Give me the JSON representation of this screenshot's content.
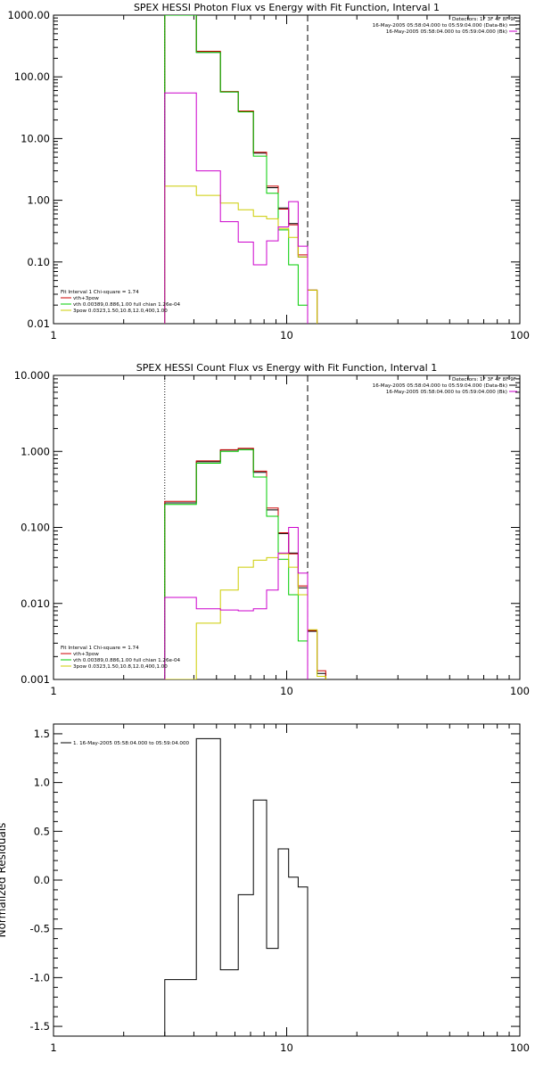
{
  "chart_data": [
    {
      "type": "line",
      "title": "SPEX HESSI Photon Flux vs Energy with Fit Function, Interval 1",
      "xscale": "log",
      "yscale": "log",
      "xlim": [
        1,
        100
      ],
      "ylim": [
        0.01,
        1000
      ],
      "x_ticks": [
        "1",
        "10",
        "100"
      ],
      "y_ticks": [
        "0.01",
        "0.10",
        "1.00",
        "10.00",
        "100.00",
        "1000.00"
      ],
      "info_lines": [
        {
          "text": "Detectors: 1F 3F 4F 8F 9F",
          "color": ""
        },
        {
          "text": "16-May-2005 05:58:04.000 to 05:59:04.000 (Data-Bk)",
          "color": "#000000"
        },
        {
          "text": "16-May-2005 05:58:04.000 to 05:59:04.000 (Bk)",
          "color": "#cc00cc"
        }
      ],
      "legend": [
        {
          "text": "Fit Interval 1    Chi-square = 1.74",
          "color": ""
        },
        {
          "text": "vth+3pow",
          "color": "#cc0000"
        },
        {
          "text": "vth 0.00389,0.886,1.00   full chian 1.26e-04",
          "color": "#00cc00"
        },
        {
          "text": "3pow 0.0323,1.50,10.8,12.0,400,1.00",
          "color": "#cccc00"
        }
      ],
      "vlines": [
        {
          "x": 3.0,
          "style": "dotted"
        },
        {
          "x": 12.3,
          "style": "dashed"
        }
      ],
      "edges": [
        3,
        4.1,
        5.2,
        6.2,
        7.2,
        8.2,
        9.2,
        10.2,
        11.2,
        12.3,
        13.5
      ],
      "series": [
        {
          "name": "Data-Bk",
          "color": "#000000",
          "values": [
            1000,
            250,
            57,
            28,
            5.8,
            1.6,
            0.75,
            0.42,
            0.12,
            0.035
          ]
        },
        {
          "name": "vth+3pow",
          "color": "#cc0000",
          "values": [
            1000,
            260,
            58,
            28,
            6.0,
            1.7,
            0.72,
            0.4,
            0.13,
            0.035
          ]
        },
        {
          "name": "vth",
          "color": "#00cc00",
          "values": [
            1000,
            250,
            57,
            27,
            5.2,
            1.3,
            0.33,
            0.09,
            0.02,
            0.0
          ]
        },
        {
          "name": "3pow",
          "color": "#cccc00",
          "values": [
            1.7,
            1.2,
            0.9,
            0.7,
            0.55,
            0.5,
            0.35,
            0.25,
            0.12,
            0.035
          ]
        },
        {
          "name": "Bk",
          "color": "#cc00cc",
          "values": [
            55,
            3.0,
            0.45,
            0.21,
            0.09,
            0.22,
            0.37,
            0.95,
            0.18,
            0.0
          ]
        }
      ]
    },
    {
      "type": "line",
      "title": "SPEX HESSI Count Flux vs Energy with Fit Function, Interval 1",
      "xscale": "log",
      "yscale": "log",
      "xlim": [
        1,
        100
      ],
      "ylim": [
        0.001,
        10
      ],
      "x_ticks": [
        "1",
        "10",
        "100"
      ],
      "y_ticks": [
        "0.001",
        "0.010",
        "0.100",
        "1.000",
        "10.000"
      ],
      "info_lines": [
        {
          "text": "Detectors: 1F 3F 4F 8F 9F",
          "color": ""
        },
        {
          "text": "16-May-2005 05:58:04.000 to 05:59:04.000 (Data-Bk)",
          "color": "#000000"
        },
        {
          "text": "16-May-2005 05:58:04.000 to 05:59:04.000 (Bk)",
          "color": "#cc00cc"
        }
      ],
      "legend": [
        {
          "text": "Fit Interval 1    Chi-square = 1.74",
          "color": ""
        },
        {
          "text": "vth+3pow",
          "color": "#cc0000"
        },
        {
          "text": "vth 0.00389,0.886,1.00   full chian 1.26e-04",
          "color": "#00cc00"
        },
        {
          "text": "3pow 0.0323,1.50,10.8,12.0,400,1.00",
          "color": "#cccc00"
        }
      ],
      "vlines": [
        {
          "x": 3.0,
          "style": "dotted"
        },
        {
          "x": 12.3,
          "style": "dashed"
        }
      ],
      "edges": [
        3,
        4.1,
        5.2,
        6.2,
        7.2,
        8.2,
        9.2,
        10.2,
        11.2,
        12.3,
        13.5,
        14.7
      ],
      "series": [
        {
          "name": "Data-Bk",
          "color": "#000000",
          "values": [
            0.21,
            0.73,
            1.04,
            1.09,
            0.53,
            0.17,
            0.083,
            0.046,
            0.016,
            0.0043,
            0.0012
          ]
        },
        {
          "name": "vth+3pow",
          "color": "#cc0000",
          "values": [
            0.22,
            0.75,
            1.05,
            1.1,
            0.55,
            0.18,
            0.085,
            0.045,
            0.017,
            0.0044,
            0.0013
          ]
        },
        {
          "name": "vth",
          "color": "#00cc00",
          "values": [
            0.2,
            0.7,
            1.0,
            1.05,
            0.46,
            0.14,
            0.038,
            0.013,
            0.0032,
            0.0,
            0.0
          ]
        },
        {
          "name": "3pow",
          "color": "#cccc00",
          "values": [
            0.001,
            0.0055,
            0.015,
            0.03,
            0.037,
            0.04,
            0.045,
            0.03,
            0.013,
            0.0045,
            0.0011
          ]
        },
        {
          "name": "Bk",
          "color": "#cc00cc",
          "values": [
            0.012,
            0.0085,
            0.0082,
            0.008,
            0.0085,
            0.015,
            0.046,
            0.1,
            0.025,
            0.0,
            0.0
          ]
        }
      ]
    },
    {
      "type": "line",
      "title": "",
      "xscale": "log",
      "yscale": "linear",
      "xlim": [
        1,
        100
      ],
      "ylim": [
        -1.6,
        1.6
      ],
      "x_ticks": [
        "1",
        "10",
        "100"
      ],
      "y_ticks": [
        "-1.5",
        "-1.0",
        "-0.5",
        "0.0",
        "0.5",
        "1.0",
        "1.5"
      ],
      "ylabel": "Normalized Residuals",
      "legend": [
        {
          "text": "1. 16-May-2005 05:58:04.000 to 05:59:04.000",
          "color": "#000000"
        }
      ],
      "edges": [
        3,
        4.1,
        5.2,
        6.2,
        7.2,
        8.2,
        9.2,
        10.2,
        11.2,
        12.3
      ],
      "series": [
        {
          "name": "",
          "color": "#000000",
          "start": -1.6,
          "values": [
            -1.02,
            1.45,
            -0.92,
            -0.15,
            0.82,
            -0.7,
            0.32,
            0.03,
            -0.07
          ],
          "end": -1.6
        }
      ]
    }
  ]
}
